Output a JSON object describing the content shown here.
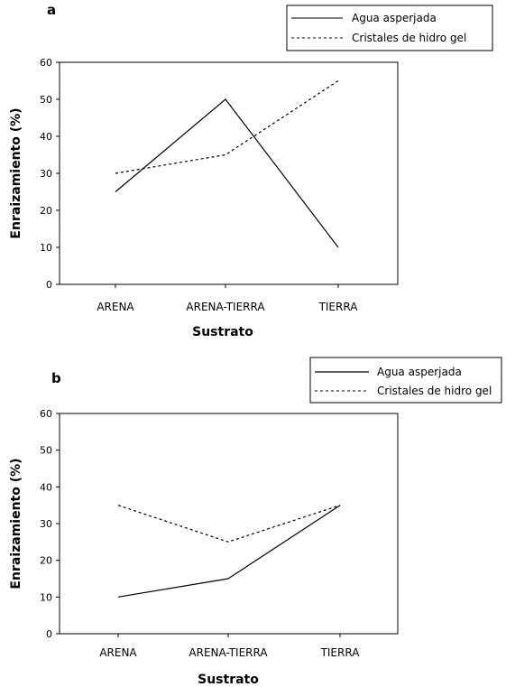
{
  "chart_data": [
    {
      "type": "line",
      "panel_label": "a",
      "categories": [
        "ARENA",
        "ARENA-TIERRA",
        "TIERRA"
      ],
      "series": [
        {
          "name": "Agua asperjada",
          "values": [
            25,
            50,
            10
          ],
          "style": "solid",
          "color": "#000000"
        },
        {
          "name": "Cristales de hidro gel",
          "values": [
            30,
            35,
            55
          ],
          "style": "dashed",
          "color": "#000000"
        }
      ],
      "xlabel": "Sustrato",
      "ylabel": "Enraizamiento (%)",
      "ylim": [
        0,
        60
      ],
      "yticks": [
        "0",
        "10",
        "20",
        "30",
        "40",
        "50",
        "60"
      ],
      "grid": false,
      "legend_position": "top-right"
    },
    {
      "type": "line",
      "panel_label": "b",
      "categories": [
        "ARENA",
        "ARENA-TIERRA",
        "TIERRA"
      ],
      "series": [
        {
          "name": "Agua asperjada",
          "values": [
            10,
            15,
            35
          ],
          "style": "solid",
          "color": "#000000"
        },
        {
          "name": "Cristales de hidro gel",
          "values": [
            35,
            25,
            35
          ],
          "style": "dashed",
          "color": "#000000"
        }
      ],
      "xlabel": "Sustrato",
      "ylabel": "Enraizamiento (%)",
      "ylim": [
        0,
        60
      ],
      "yticks": [
        "0",
        "10",
        "20",
        "30",
        "40",
        "50",
        "60"
      ],
      "grid": false,
      "legend_position": "top-right"
    }
  ]
}
